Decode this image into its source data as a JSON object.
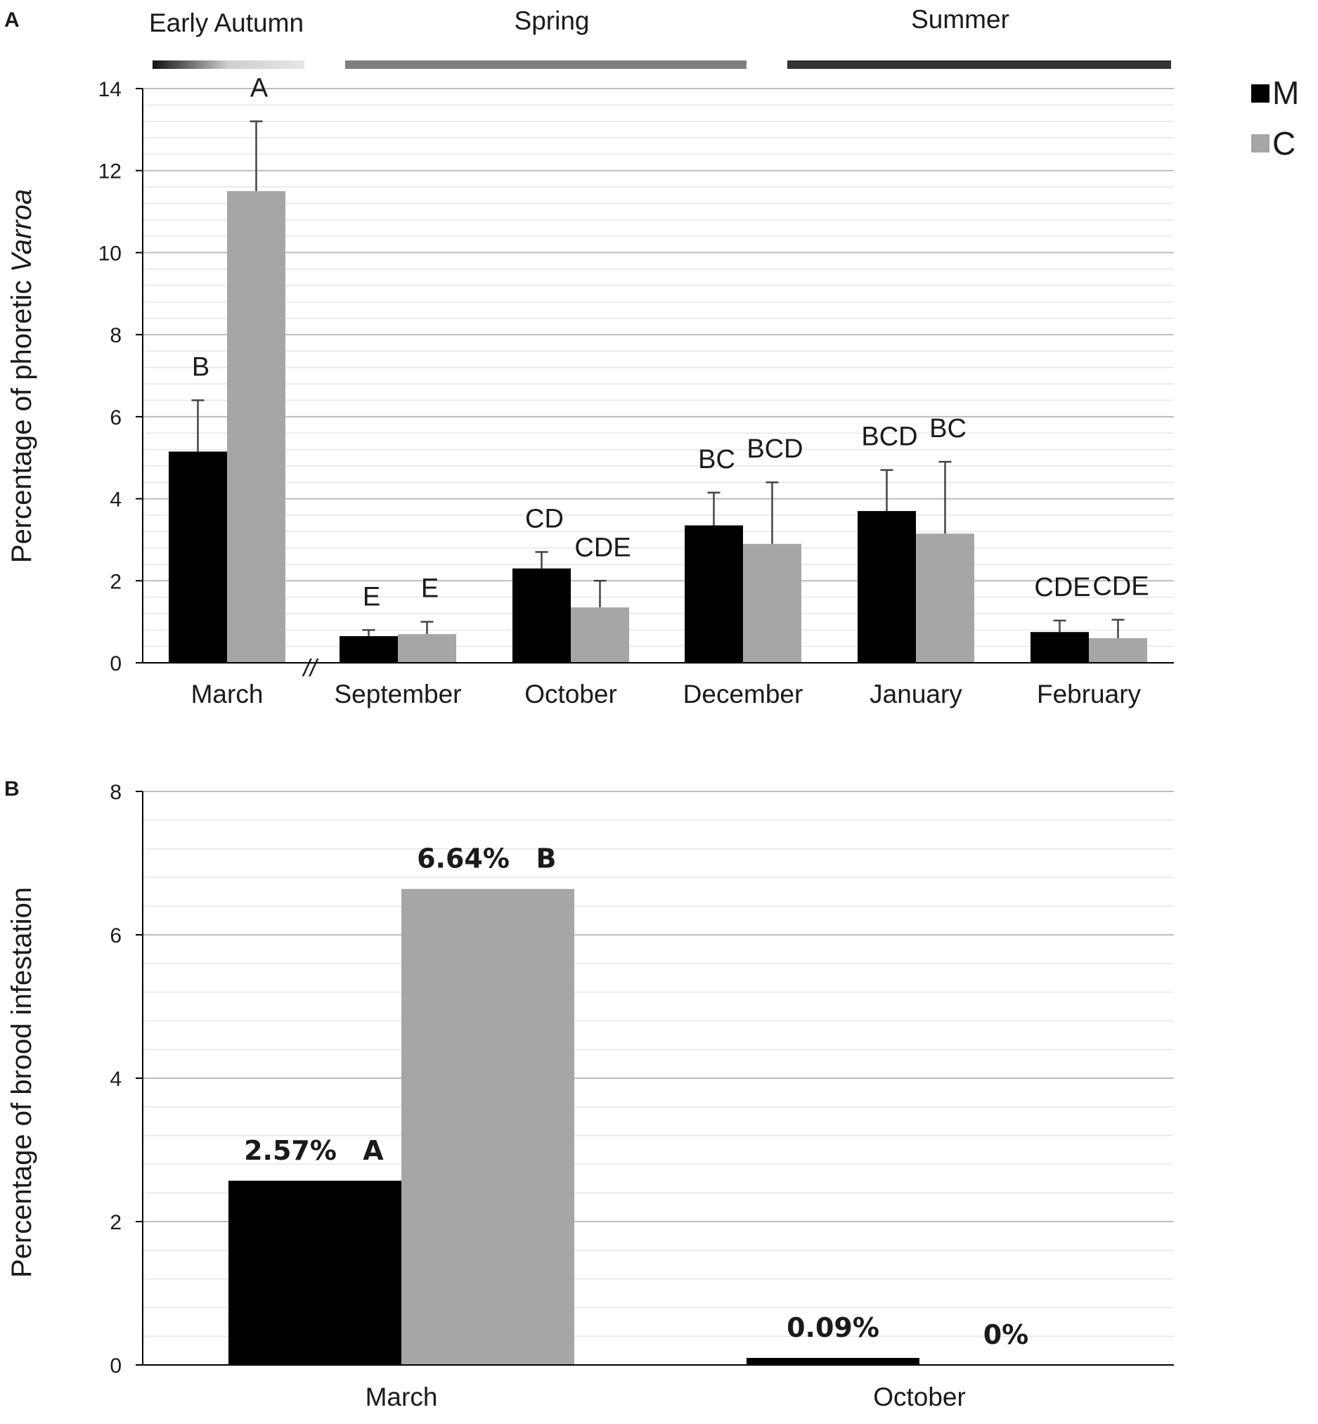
{
  "colors": {
    "M": "#000000",
    "C": "#a6a6a6",
    "grid_major": "#bdbdbd",
    "grid_minor": "#e6e6e6",
    "spring_bar": "#7f7f7f",
    "summer_bar": "#333333"
  },
  "legend": [
    {
      "key": "M",
      "label": "M"
    },
    {
      "key": "C",
      "label": "C"
    }
  ],
  "chart_data": [
    {
      "panel": "A",
      "type": "bar",
      "ylabel_prefix": "Percentage of phoretic ",
      "ylabel_italic": "Varroa",
      "ylim": [
        0,
        14
      ],
      "y_major_ticks": [
        "0",
        "2",
        "4",
        "6",
        "8",
        "10",
        "12",
        "14"
      ],
      "y_major_step": 2,
      "y_minor_step": 0.4,
      "categories": [
        "March",
        "September",
        "October",
        "December",
        "January",
        "February"
      ],
      "axis_break_label": "//",
      "seasons": [
        {
          "label": "Early Autumn",
          "style": "gradient"
        },
        {
          "label": "Spring",
          "style": "spring"
        },
        {
          "label": "Summer",
          "style": "summer"
        }
      ],
      "series": [
        {
          "name": "M",
          "values": [
            5.15,
            0.65,
            2.3,
            3.35,
            3.7,
            0.75
          ],
          "errors": [
            1.25,
            0.15,
            0.4,
            0.8,
            1.0,
            0.28
          ],
          "labels": [
            "B",
            "E",
            "CD",
            "BC",
            "BCD",
            "CDE"
          ]
        },
        {
          "name": "C",
          "values": [
            11.5,
            0.7,
            1.35,
            2.9,
            3.15,
            0.6
          ],
          "errors": [
            1.7,
            0.3,
            0.65,
            1.5,
            1.75,
            0.45
          ],
          "labels": [
            "A",
            "E",
            "CDE",
            "BCD",
            "BC",
            "CDE"
          ]
        }
      ]
    },
    {
      "panel": "B",
      "type": "bar",
      "ylabel": "Percentage of brood infestation",
      "ylim": [
        0,
        8
      ],
      "y_major_ticks": [
        "0",
        "2",
        "4",
        "6",
        "8"
      ],
      "y_major_step": 2,
      "y_minor_step": 0.4,
      "categories": [
        "March",
        "October"
      ],
      "series": [
        {
          "name": "M",
          "values": [
            2.57,
            0.09
          ],
          "value_labels": [
            "2.57%",
            "0.09%"
          ],
          "labels": [
            "A",
            ""
          ]
        },
        {
          "name": "C",
          "values": [
            6.64,
            0
          ],
          "value_labels": [
            "6.64%",
            "0%"
          ],
          "labels": [
            "B",
            ""
          ]
        }
      ]
    }
  ]
}
